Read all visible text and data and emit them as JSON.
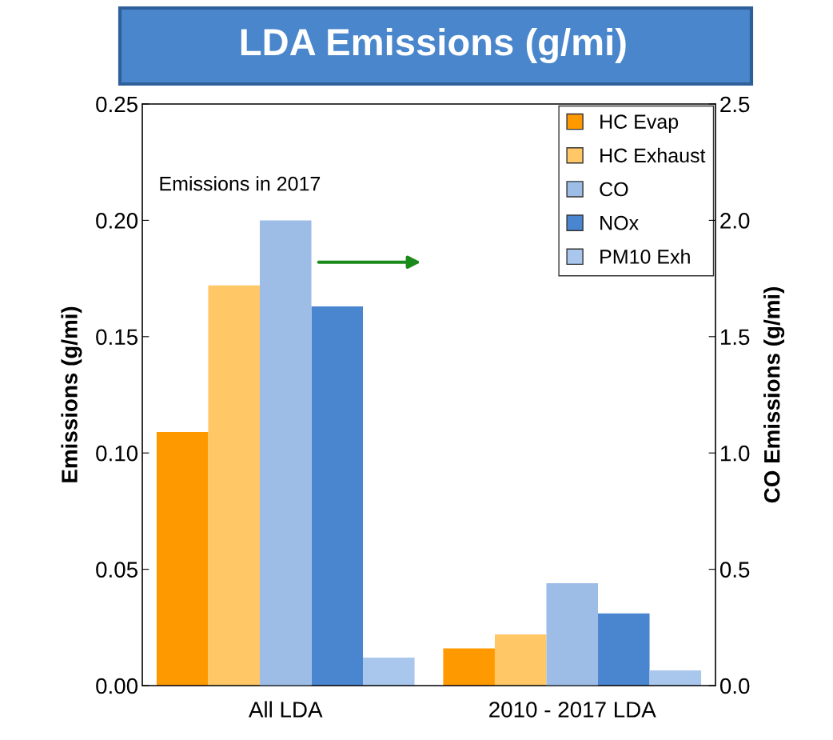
{
  "chart_data": {
    "type": "bar",
    "title": "LDA Emissions (g/mi)",
    "categories": [
      "All LDA",
      "2010 - 2017 LDA"
    ],
    "series": [
      {
        "name": "HC Evap",
        "color": "#ff9900",
        "values": [
          0.109,
          0.016
        ]
      },
      {
        "name": "HC Exhaust",
        "color": "#ffc766",
        "values": [
          0.172,
          0.022
        ]
      },
      {
        "name": "CO",
        "color": "#9dbde6",
        "values": [
          2.0,
          0.44
        ],
        "axis": "y2"
      },
      {
        "name": "NOx",
        "color": "#4a86d0",
        "values": [
          0.163,
          0.031
        ]
      },
      {
        "name": "PM10 Exh",
        "color": "#a9c7ec",
        "values": [
          0.012,
          0.0065
        ]
      }
    ],
    "ylabel": "Emissions (g/mi)",
    "y2label": "CO Emissions (g/mi)",
    "ylim": [
      0,
      0.25
    ],
    "yticks": [
      {
        "value": 0,
        "label": "0.00"
      },
      {
        "value": 0.05,
        "label": "0.05"
      },
      {
        "value": 0.1,
        "label": "0.10"
      },
      {
        "value": 0.15,
        "label": "0.15"
      },
      {
        "value": 0.2,
        "label": "0.20"
      },
      {
        "value": 0.25,
        "label": "0.25"
      }
    ],
    "y2lim": [
      0,
      2.5
    ],
    "y2ticks": [
      {
        "value": 0,
        "label": "0.0"
      },
      {
        "value": 0.5,
        "label": "0.5"
      },
      {
        "value": 1,
        "label": "1.0"
      },
      {
        "value": 1.5,
        "label": "1.5"
      },
      {
        "value": 2,
        "label": "2.0"
      },
      {
        "value": 2.5,
        "label": "2.5"
      }
    ],
    "annotations": [
      "Emissions in 2017"
    ],
    "legend": "top right",
    "grid": false
  }
}
